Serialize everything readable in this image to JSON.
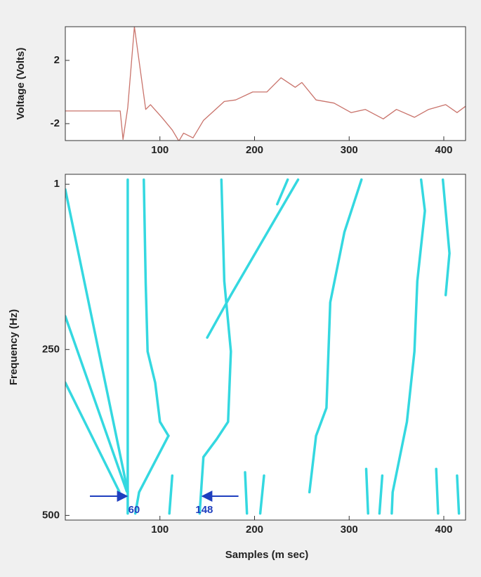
{
  "chart_data": [
    {
      "type": "line",
      "ylabel": "Voltage (Volts)",
      "color": "#c9736b",
      "x": [
        0,
        58,
        61,
        66,
        73,
        79,
        85,
        90,
        102,
        113,
        120,
        125,
        135,
        146,
        168,
        180,
        198,
        213,
        228,
        243,
        250,
        265,
        284,
        302,
        317,
        336,
        350,
        369,
        384,
        402,
        414,
        423
      ],
      "values": [
        -1.2,
        -1.2,
        -3.0,
        -1.0,
        4.13,
        1.5,
        -1.1,
        -0.8,
        -1.6,
        -2.4,
        -3.1,
        -2.6,
        -2.9,
        -1.8,
        -0.6,
        -0.5,
        0,
        0,
        0.9,
        0.3,
        0.6,
        -0.5,
        -0.7,
        -1.3,
        -1.1,
        -1.7,
        -1.1,
        -1.6,
        -1.1,
        -0.8,
        -1.3,
        -0.9
      ],
      "xlim": [
        0,
        423
      ],
      "ylim": [
        -3.07,
        4.13
      ],
      "xticks": [
        100,
        200,
        300,
        400
      ],
      "yticks": [
        -2,
        2
      ]
    },
    {
      "type": "contour",
      "xlabel": "Samples (m sec)",
      "ylabel": "Frequency (Hz)",
      "color": "#34d8e0",
      "series": [
        {
          "x": [
            66,
            66
          ],
          "values": [
            -6,
            497
          ]
        },
        {
          "x": [
            0,
            66
          ],
          "values": [
            9,
            464
          ]
        },
        {
          "x": [
            0,
            65
          ],
          "values": [
            200,
            464
          ]
        },
        {
          "x": [
            0,
            57
          ],
          "values": [
            300,
            464
          ]
        },
        {
          "x": [
            83,
            85,
            87,
            95,
            100,
            109
          ],
          "values": [
            -6,
            150,
            253,
            300,
            359,
            380
          ]
        },
        {
          "x": [
            109,
            78,
            74
          ],
          "values": [
            380,
            465,
            497
          ]
        },
        {
          "x": [
            165,
            168,
            175,
            172,
            160,
            146,
            142
          ],
          "values": [
            -6,
            147,
            253,
            359,
            385,
            412,
            497
          ]
        },
        {
          "x": [
            246,
            175,
            150
          ],
          "values": [
            -6,
            168,
            232
          ]
        },
        {
          "x": [
            235,
            224
          ],
          "values": [
            -6,
            31
          ]
        },
        {
          "x": [
            313,
            295,
            280,
            276,
            265,
            258
          ],
          "values": [
            -6,
            73,
            179,
            338,
            380,
            465
          ]
        },
        {
          "x": [
            376,
            380,
            372,
            369,
            361,
            346,
            345
          ],
          "values": [
            -6,
            41,
            147,
            253,
            359,
            465,
            497
          ]
        },
        {
          "x": [
            399,
            406,
            402
          ],
          "values": [
            -6,
            105,
            168
          ]
        },
        {
          "x": [
            113,
            110
          ],
          "values": [
            440,
            497
          ]
        },
        {
          "x": [
            190,
            192
          ],
          "values": [
            435,
            497
          ]
        },
        {
          "x": [
            210,
            206
          ],
          "values": [
            440,
            497
          ]
        },
        {
          "x": [
            318,
            320
          ],
          "values": [
            430,
            497
          ]
        },
        {
          "x": [
            335,
            332
          ],
          "values": [
            440,
            497
          ]
        },
        {
          "x": [
            392,
            394
          ],
          "values": [
            430,
            497
          ]
        },
        {
          "x": [
            414,
            416
          ],
          "values": [
            440,
            497
          ]
        }
      ],
      "annotations": [
        {
          "label": "60",
          "x_from": 26,
          "x_to": 65,
          "y": 471
        },
        {
          "label": "148",
          "x_from": 183,
          "x_to": 145,
          "y": 471
        }
      ],
      "xlim": [
        0,
        423
      ],
      "ylim": [
        507,
        -14
      ],
      "xticks": [
        100,
        200,
        300,
        400
      ],
      "yticks": [
        1,
        250,
        500
      ]
    }
  ]
}
